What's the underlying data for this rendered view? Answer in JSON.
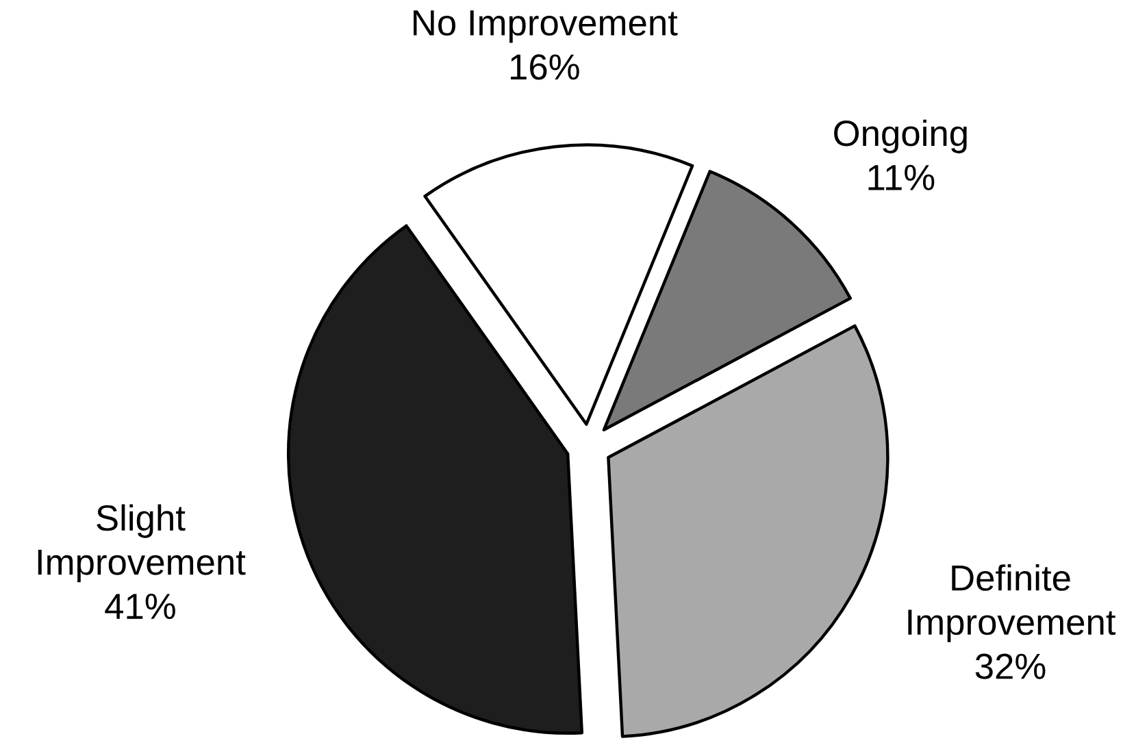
{
  "chart_data": {
    "type": "pie",
    "categories": [
      "No Improvement",
      "Ongoing",
      "Definite\nImprovement",
      "Slight\nImprovement"
    ],
    "values": [
      16,
      11,
      32,
      41
    ],
    "colors": [
      "#ffffff",
      "#7a7a7a",
      "#a9a9a9",
      "#1e1e1e"
    ],
    "value_labels": [
      "16%",
      "11%",
      "32%",
      "41%"
    ]
  }
}
